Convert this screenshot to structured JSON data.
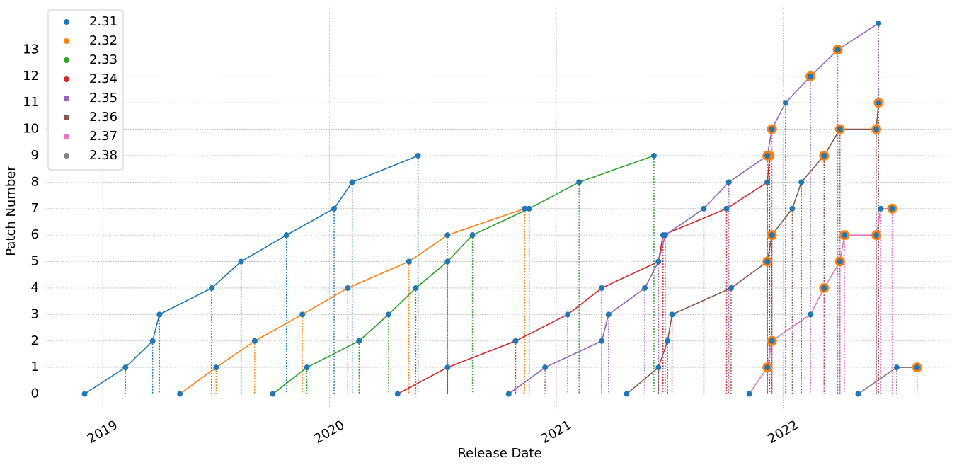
{
  "chart_data": {
    "type": "line",
    "x_label": "Release Date",
    "y_label": "Patch Number",
    "xlim": [
      2018.75,
      2022.75
    ],
    "xticks": [
      2019,
      2020,
      2021,
      2022
    ],
    "ylim": [
      -0.6,
      14.4
    ],
    "yticks": [
      0,
      1,
      2,
      3,
      4,
      5,
      6,
      7,
      8,
      9,
      10,
      11,
      12,
      13
    ],
    "grid": true,
    "legend": "upper-left",
    "marker_color": "#1f77b4",
    "highlight_color": "#ff7f0e",
    "series": [
      {
        "name": "2.31",
        "color": "#1f77b4",
        "x": [
          2018.92,
          2019.1,
          2019.22,
          2019.25,
          2019.48,
          2019.61,
          2019.81,
          2020.02,
          2020.1,
          2020.39
        ],
        "values": [
          0,
          1,
          2,
          3,
          4,
          5,
          6,
          7,
          8,
          9
        ],
        "highlight": [
          false,
          false,
          false,
          false,
          false,
          false,
          false,
          false,
          false,
          false
        ]
      },
      {
        "name": "2.32",
        "color": "#ff7f0e",
        "x": [
          2019.34,
          2019.5,
          2019.67,
          2019.88,
          2020.08,
          2020.35,
          2020.52,
          2020.86
        ],
        "values": [
          0,
          1,
          2,
          3,
          4,
          5,
          6,
          7
        ],
        "highlight": [
          false,
          false,
          false,
          false,
          false,
          false,
          false,
          false
        ]
      },
      {
        "name": "2.33",
        "color": "#2ca02c",
        "x": [
          2019.75,
          2019.9,
          2020.13,
          2020.26,
          2020.38,
          2020.52,
          2020.63,
          2020.88,
          2021.1,
          2021.43
        ],
        "values": [
          0,
          1,
          2,
          3,
          4,
          5,
          6,
          7,
          8,
          9
        ],
        "highlight": [
          false,
          false,
          false,
          false,
          false,
          false,
          false,
          false,
          false,
          false
        ]
      },
      {
        "name": "2.34",
        "color": "#d62728",
        "x": [
          2020.3,
          2020.52,
          2020.82,
          2021.05,
          2021.2,
          2021.45,
          2021.47,
          2021.75,
          2021.93,
          2021.94
        ],
        "values": [
          0,
          1,
          2,
          3,
          4,
          5,
          6,
          7,
          8,
          9
        ],
        "highlight": [
          false,
          false,
          false,
          false,
          false,
          false,
          false,
          false,
          false,
          true
        ]
      },
      {
        "name": "2.35",
        "color": "#9467bd",
        "x": [
          2020.79,
          2020.95,
          2021.2,
          2021.23,
          2021.39,
          2021.45,
          2021.48,
          2021.65,
          2021.76,
          2021.93,
          2021.95,
          2022.01,
          2022.12,
          2022.24,
          2022.42
        ],
        "values": [
          0,
          1,
          2,
          3,
          4,
          5,
          6,
          7,
          8,
          9,
          10,
          11,
          12,
          13,
          14
        ],
        "highlight": [
          false,
          false,
          false,
          false,
          false,
          false,
          false,
          false,
          false,
          true,
          true,
          false,
          true,
          true,
          false
        ]
      },
      {
        "name": "2.36",
        "color": "#8c564b",
        "x": [
          2021.31,
          2021.45,
          2021.49,
          2021.51,
          2021.77,
          2021.93,
          2021.95,
          2022.04,
          2022.08,
          2022.18,
          2022.25,
          2022.41,
          2022.42
        ],
        "values": [
          0,
          1,
          2,
          3,
          4,
          5,
          6,
          7,
          8,
          9,
          10,
          10,
          11
        ],
        "highlight": [
          false,
          false,
          false,
          false,
          false,
          true,
          true,
          false,
          false,
          true,
          true,
          true,
          true
        ]
      },
      {
        "name": "2.37",
        "color": "#e377c2",
        "x": [
          2021.85,
          2021.93,
          2021.95,
          2022.12,
          2022.18,
          2022.25,
          2022.27,
          2022.41,
          2022.43,
          2022.48
        ],
        "values": [
          0,
          1,
          2,
          3,
          4,
          5,
          6,
          6,
          7,
          7
        ],
        "highlight": [
          false,
          true,
          true,
          false,
          true,
          true,
          true,
          true,
          false,
          true
        ]
      },
      {
        "name": "2.38",
        "color": "#7f7f7f",
        "x": [
          2022.33,
          2022.5,
          2022.59
        ],
        "values": [
          0,
          1,
          1
        ],
        "highlight": [
          false,
          false,
          true
        ]
      }
    ]
  }
}
